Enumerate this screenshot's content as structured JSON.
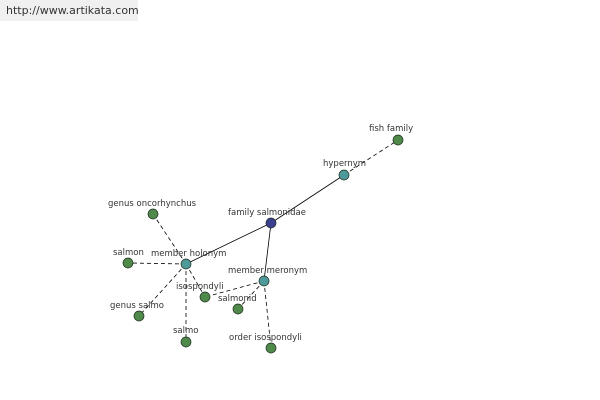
{
  "banner": {
    "url": "http://www.artikata.com"
  },
  "graph": {
    "nodes": [
      {
        "id": "family-salmonidae",
        "label": "family salmonidae",
        "kind": "root",
        "color": "#3a3f8f"
      },
      {
        "id": "hypernym",
        "label": "hypernym",
        "kind": "relation",
        "color": "#4e9a9a"
      },
      {
        "id": "fish-family",
        "label": "fish family",
        "kind": "leaf",
        "color": "#4f8a4a"
      },
      {
        "id": "member-holonym",
        "label": "member holonym",
        "kind": "relation",
        "color": "#4e9a9a"
      },
      {
        "id": "member-meronym",
        "label": "member meronym",
        "kind": "relation",
        "color": "#4e9a9a"
      },
      {
        "id": "genus-oncorhynchus",
        "label": "genus oncorhynchus",
        "kind": "leaf",
        "color": "#4f8a4a"
      },
      {
        "id": "salmon",
        "label": "salmon",
        "kind": "leaf",
        "color": "#4f8a4a"
      },
      {
        "id": "genus-salmo",
        "label": "genus salmo",
        "kind": "leaf",
        "color": "#4f8a4a"
      },
      {
        "id": "salmo",
        "label": "salmo",
        "kind": "leaf",
        "color": "#4f8a4a"
      },
      {
        "id": "isospondyli",
        "label": "isospondyli",
        "kind": "leaf",
        "color": "#4f8a4a"
      },
      {
        "id": "salmonid",
        "label": "salmonid",
        "kind": "leaf",
        "color": "#4f8a4a"
      },
      {
        "id": "order-isospondyli",
        "label": "order isospondyli",
        "kind": "leaf",
        "color": "#4f8a4a"
      }
    ],
    "edges": [
      {
        "from": "family-salmonidae",
        "to": "hypernym",
        "style": "solid"
      },
      {
        "from": "family-salmonidae",
        "to": "member-holonym",
        "style": "solid"
      },
      {
        "from": "family-salmonidae",
        "to": "member-meronym",
        "style": "solid"
      },
      {
        "from": "hypernym",
        "to": "fish-family",
        "style": "dashed"
      },
      {
        "from": "member-holonym",
        "to": "genus-oncorhynchus",
        "style": "dashed"
      },
      {
        "from": "member-holonym",
        "to": "salmon",
        "style": "dashed"
      },
      {
        "from": "member-holonym",
        "to": "genus-salmo",
        "style": "dashed"
      },
      {
        "from": "member-holonym",
        "to": "salmo",
        "style": "dashed"
      },
      {
        "from": "member-holonym",
        "to": "isospondyli",
        "style": "dashed"
      },
      {
        "from": "member-meronym",
        "to": "salmonid",
        "style": "dashed"
      },
      {
        "from": "member-meronym",
        "to": "order-isospondyli",
        "style": "dashed"
      },
      {
        "from": "member-meronym",
        "to": "isospondyli",
        "style": "dashed"
      }
    ]
  }
}
